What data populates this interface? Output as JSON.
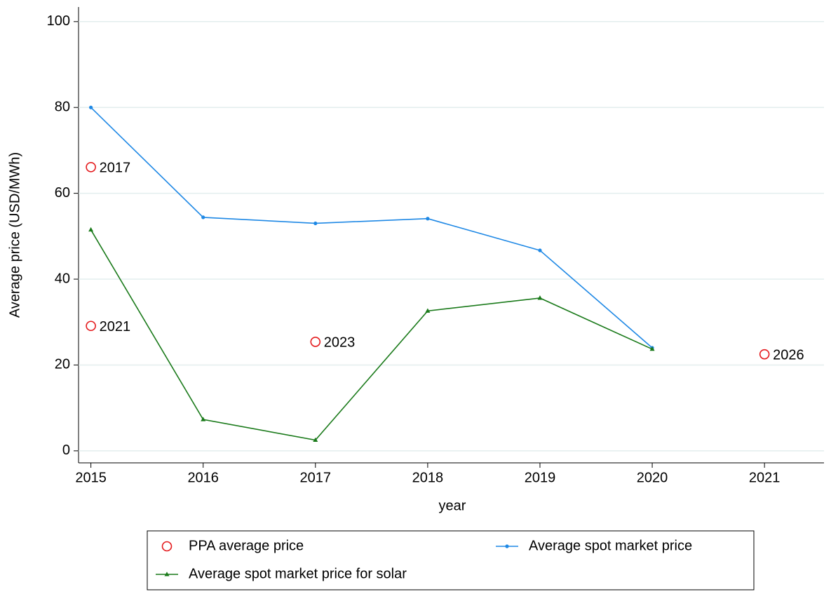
{
  "chart_data": {
    "type": "line",
    "x_label": "year",
    "y_label": "Average price (USD/MWh)",
    "x": [
      2015,
      2016,
      2017,
      2018,
      2019,
      2020
    ],
    "xlim": [
      2014.89,
      2021.53
    ],
    "xticks": [
      2015,
      2016,
      2017,
      2018,
      2019,
      2020,
      2021
    ],
    "ylim": [
      -2.8,
      103.4
    ],
    "yticks": [
      0,
      20,
      40,
      60,
      80,
      100
    ],
    "grid": true,
    "series": [
      {
        "name": "PPA average price",
        "color": "#e4191c",
        "marker": "circle",
        "x": [
          2015,
          2015,
          2017,
          2021
        ],
        "values": [
          66.1,
          29.1,
          25.4,
          22.5
        ],
        "point_labels": [
          "2017",
          "2021",
          "2023",
          "2026"
        ],
        "label_color": "#9a9a9a"
      },
      {
        "name": "Average spot market price",
        "color": "#1e88e5",
        "marker": "dot",
        "values": [
          80,
          54.4,
          53,
          54.1,
          46.7,
          24
        ]
      },
      {
        "name": "Average spot market price for solar",
        "color": "#1a7a1a",
        "marker": "triangle",
        "values": [
          51.5,
          7.3,
          2.5,
          32.6,
          35.6,
          23.7
        ]
      }
    ]
  }
}
